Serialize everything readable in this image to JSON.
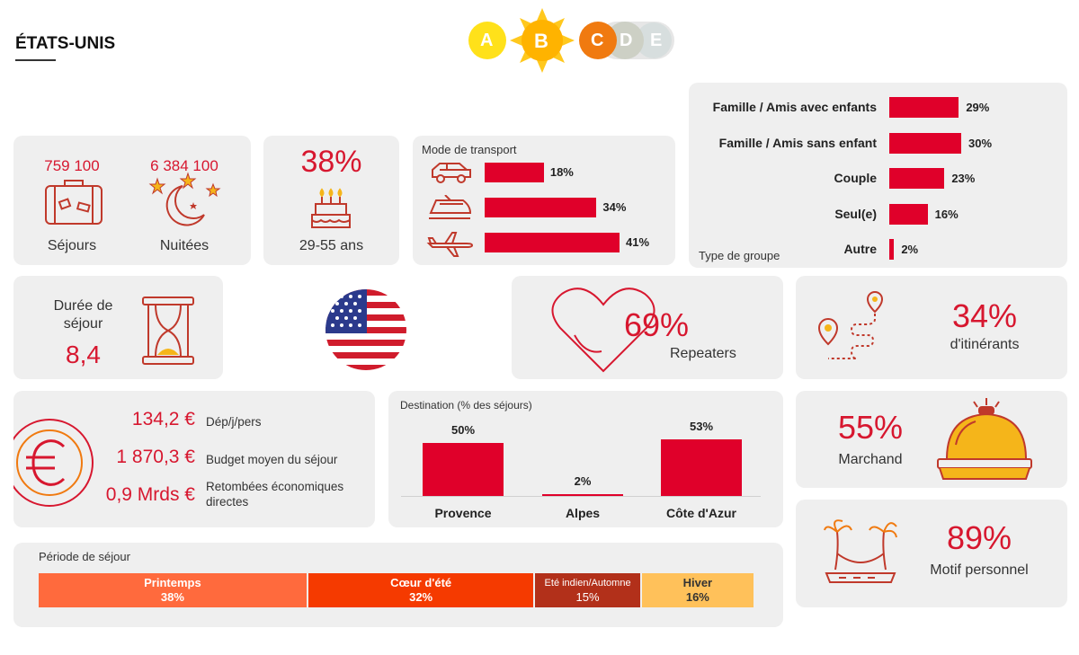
{
  "header": {
    "title": "ÉTATS-UNIS",
    "rating": {
      "letters": [
        "A",
        "B",
        "C",
        "D",
        "E"
      ],
      "selected": "B"
    }
  },
  "stays": {
    "sejours_value": "759 100",
    "sejours_label": "Séjours",
    "nuitees_value": "6 384 100",
    "nuitees_label": "Nuitées"
  },
  "age": {
    "value": "38%",
    "label": "29-55 ans"
  },
  "transport": {
    "title": "Mode de transport",
    "items": [
      {
        "icon": "car-icon",
        "value": 18,
        "label": "18%"
      },
      {
        "icon": "train-icon",
        "value": 34,
        "label": "34%"
      },
      {
        "icon": "plane-icon",
        "value": 41,
        "label": "41%"
      }
    ]
  },
  "group": {
    "title": "Type de groupe",
    "items": [
      {
        "label": "Famille / Amis avec enfants",
        "value": 29,
        "pct": "29%"
      },
      {
        "label": "Famille / Amis sans enfant",
        "value": 30,
        "pct": "30%"
      },
      {
        "label": "Couple",
        "value": 23,
        "pct": "23%"
      },
      {
        "label": "Seul(e)",
        "value": 16,
        "pct": "16%"
      },
      {
        "label": "Autre",
        "value": 2,
        "pct": "2%"
      }
    ]
  },
  "duration": {
    "label_line1": "Durée de",
    "label_line2": "séjour",
    "value": "8,4"
  },
  "repeaters": {
    "value": "69%",
    "label": "Repeaters"
  },
  "itinerants": {
    "value": "34%",
    "label": "d'itinérants"
  },
  "spending": {
    "rows": [
      {
        "value": "134,2 €",
        "label": "Dép/j/pers"
      },
      {
        "value": "1 870,3 €",
        "label": "Budget moyen du séjour"
      },
      {
        "value": "0,9 Mrds €",
        "label": "Retombées économiques directes"
      }
    ]
  },
  "destination": {
    "title": "Destination (% des séjours)",
    "items": [
      {
        "label": "Provence",
        "value": 50,
        "pct": "50%"
      },
      {
        "label": "Alpes",
        "value": 2,
        "pct": "2%"
      },
      {
        "label": "Côte d'Azur",
        "value": 53,
        "pct": "53%"
      }
    ]
  },
  "merchant": {
    "value": "55%",
    "label": "Marchand"
  },
  "motive": {
    "value": "89%",
    "label": "Motif personnel"
  },
  "period": {
    "title": "Période de séjour",
    "segments": [
      {
        "name": "Printemps",
        "value": 38,
        "pct": "38%",
        "color": "#ff6a3d"
      },
      {
        "name": "Cœur d'été",
        "value": 32,
        "pct": "32%",
        "color": "#f53a00"
      },
      {
        "name": "Eté indien/Automne",
        "value": 15,
        "pct": "15%",
        "color": "#b2301a"
      },
      {
        "name": "Hiver",
        "value": 16,
        "pct": "16%",
        "color": "#ffc15a"
      }
    ]
  },
  "chart_data": [
    {
      "type": "bar",
      "title": "Mode de transport",
      "categories": [
        "car",
        "train",
        "plane"
      ],
      "values": [
        18,
        34,
        41
      ],
      "unit": "%"
    },
    {
      "type": "bar",
      "title": "Type de groupe",
      "categories": [
        "Famille / Amis avec enfants",
        "Famille / Amis sans enfant",
        "Couple",
        "Seul(e)",
        "Autre"
      ],
      "values": [
        29,
        30,
        23,
        16,
        2
      ],
      "unit": "%"
    },
    {
      "type": "bar",
      "title": "Destination (% des séjours)",
      "categories": [
        "Provence",
        "Alpes",
        "Côte d'Azur"
      ],
      "values": [
        50,
        2,
        53
      ],
      "unit": "%"
    },
    {
      "type": "bar",
      "title": "Période de séjour",
      "categories": [
        "Printemps",
        "Cœur d'été",
        "Eté indien/Automne",
        "Hiver"
      ],
      "values": [
        38,
        32,
        15,
        16
      ],
      "unit": "%"
    }
  ]
}
